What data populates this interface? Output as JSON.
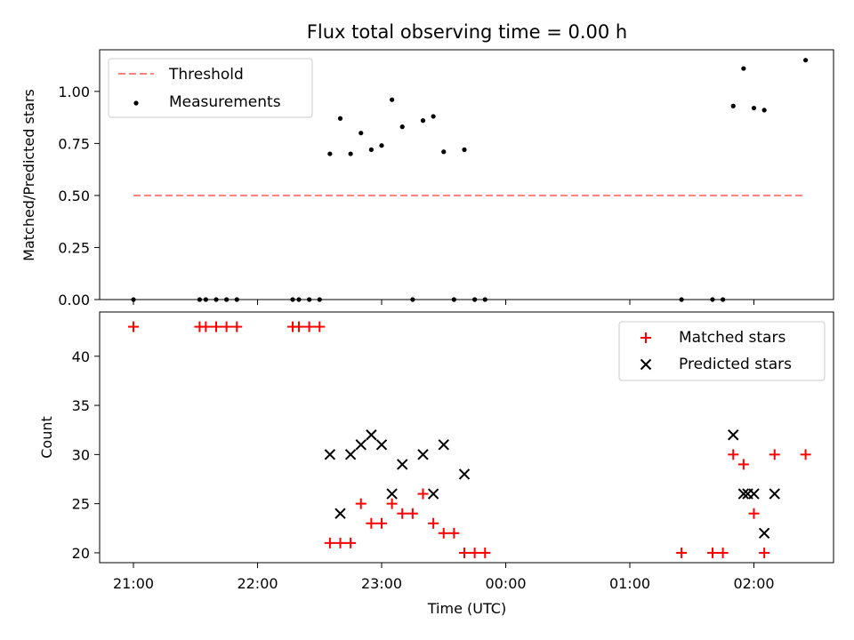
{
  "chart_data": [
    {
      "type": "scatter",
      "title": "Flux total observing time = 0.00 h",
      "ylabel": "Matched/Predicted stars",
      "xlabel": "",
      "ylim": [
        0.0,
        1.2
      ],
      "yticks": [
        "0.00",
        "0.25",
        "0.50",
        "0.75",
        "1.00"
      ],
      "legend_position": "top-left",
      "grid": false,
      "series": [
        {
          "name": "Threshold",
          "kind": "dashed-line",
          "color": "#ff7f7f",
          "x": [
            "21:00",
            "02:24"
          ],
          "y": [
            0.5,
            0.5
          ]
        },
        {
          "name": "Measurements",
          "kind": "points",
          "color": "#000000",
          "x": [
            "21:00",
            "21:32",
            "21:35",
            "21:40",
            "21:45",
            "21:50",
            "22:17",
            "22:20",
            "22:25",
            "22:30",
            "22:35",
            "22:40",
            "22:45",
            "22:50",
            "22:55",
            "23:00",
            "23:05",
            "23:10",
            "23:15",
            "23:20",
            "23:25",
            "23:30",
            "23:35",
            "23:40",
            "23:45",
            "23:50",
            "01:25",
            "01:40",
            "01:45",
            "01:50",
            "01:55",
            "02:00",
            "02:05",
            "02:25"
          ],
          "y": [
            0,
            0,
            0,
            0,
            0,
            0,
            0,
            0,
            0,
            0,
            0.7,
            0.87,
            0.7,
            0.8,
            0.72,
            0.74,
            0.96,
            0.83,
            0,
            0.86,
            0.88,
            0.71,
            0,
            0.72,
            0,
            0,
            0,
            0,
            0,
            0.93,
            1.11,
            0.92,
            0.91,
            1.15
          ]
        }
      ]
    },
    {
      "type": "scatter",
      "ylabel": "Count",
      "xlabel": "Time (UTC)",
      "ylim": [
        19,
        44.5
      ],
      "yticks": [
        "20",
        "25",
        "30",
        "35",
        "40"
      ],
      "xticks": [
        "21:00",
        "22:00",
        "23:00",
        "00:00",
        "01:00",
        "02:00"
      ],
      "legend_position": "top-right",
      "grid": false,
      "series": [
        {
          "name": "Matched stars",
          "marker": "plus",
          "color": "#ff0000",
          "x": [
            "21:00",
            "21:32",
            "21:35",
            "21:40",
            "21:45",
            "21:50",
            "22:17",
            "22:20",
            "22:25",
            "22:30",
            "22:35",
            "22:40",
            "22:45",
            "22:50",
            "22:55",
            "23:00",
            "23:05",
            "23:10",
            "23:15",
            "23:20",
            "23:25",
            "23:30",
            "23:35",
            "23:40",
            "23:45",
            "23:50",
            "01:25",
            "01:40",
            "01:45",
            "01:50",
            "01:55",
            "02:00",
            "02:05",
            "02:10",
            "02:25"
          ],
          "y": [
            43,
            43,
            43,
            43,
            43,
            43,
            43,
            43,
            43,
            43,
            21,
            21,
            21,
            25,
            23,
            23,
            25,
            24,
            24,
            26,
            23,
            22,
            22,
            20,
            20,
            20,
            20,
            20,
            20,
            30,
            29,
            24,
            20,
            30,
            30
          ]
        },
        {
          "name": "Predicted stars",
          "marker": "x",
          "color": "#000000",
          "x": [
            "22:35",
            "22:40",
            "22:45",
            "22:50",
            "22:55",
            "23:00",
            "23:05",
            "23:10",
            "23:20",
            "23:25",
            "23:30",
            "23:40",
            "01:50",
            "01:55",
            "01:57",
            "02:00",
            "02:05",
            "02:10"
          ],
          "y": [
            30,
            24,
            30,
            31,
            32,
            31,
            26,
            29,
            30,
            26,
            31,
            28,
            32,
            26,
            26,
            26,
            22,
            26
          ]
        }
      ]
    }
  ]
}
